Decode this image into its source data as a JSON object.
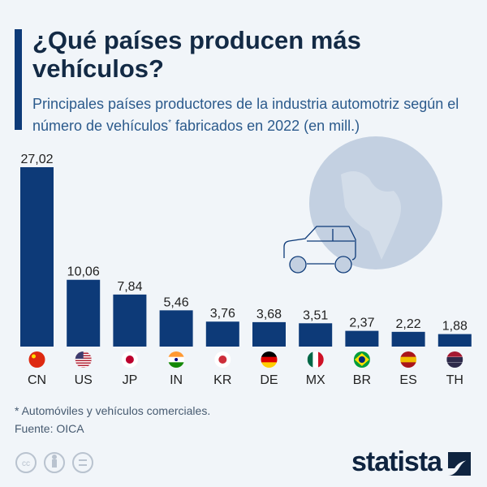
{
  "title": "¿Qué países producen más vehículos?",
  "subtitle_a": "Principales países productores de la industria automotriz según el número de vehículos",
  "subtitle_sup": "*",
  "subtitle_b": " fabricados en 2022 (en mill.)",
  "footnote": "* Automóviles y vehículos comerciales.",
  "source": "Fuente: OICA",
  "brand": "statista",
  "colors": {
    "bar": "#0d3a78",
    "background": "#f1f5f9",
    "globe": "#c3d0e1"
  },
  "icons": [
    "globe-icon",
    "car-icon",
    "cc-icon",
    "by-icon",
    "nd-icon",
    "statista-logo-icon"
  ],
  "chart_data": {
    "type": "bar",
    "categories": [
      "CN",
      "US",
      "JP",
      "IN",
      "KR",
      "DE",
      "MX",
      "BR",
      "ES",
      "TH"
    ],
    "values": [
      27.02,
      10.06,
      7.84,
      5.46,
      3.76,
      3.68,
      3.51,
      2.37,
      2.22,
      1.88
    ],
    "value_labels": [
      "27,02",
      "10,06",
      "7,84",
      "5,46",
      "3,76",
      "3,68",
      "3,51",
      "2,37",
      "2,22",
      "1,88"
    ],
    "grid": false,
    "ylim": [
      0,
      27.02
    ]
  }
}
